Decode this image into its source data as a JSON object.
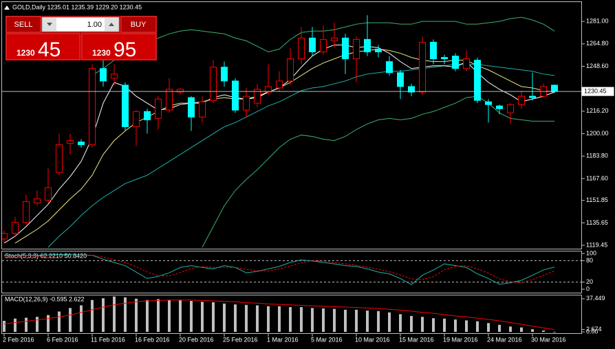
{
  "chart_data": [
    {
      "type": "candlestick",
      "title": "GOLD,Daily 1235.01 1235.39 1229.20 1230.45",
      "categories": [
        "2 Feb 2016",
        null,
        null,
        null,
        "6 Feb 2016",
        null,
        null,
        null,
        "11 Feb 2016",
        null,
        null,
        null,
        "16 Feb 2016",
        null,
        null,
        null,
        "20 Feb 2016",
        null,
        null,
        null,
        "25 Feb 2016",
        null,
        null,
        null,
        "1 Mar 2016",
        null,
        null,
        null,
        "5 Mar 2016",
        null,
        null,
        null,
        "10 Mar 2016",
        null,
        null,
        null,
        "15 Mar 2016",
        null,
        null,
        null,
        "19 Mar 2016",
        null,
        null,
        null,
        "24 Mar 2016",
        null,
        null,
        null,
        "30 Mar 2016",
        null,
        null
      ],
      "open": [
        1124,
        1128,
        1136,
        1150,
        1152,
        1172,
        1193,
        1194,
        1192,
        1247,
        1240,
        1235,
        1205,
        1216,
        1211,
        1217,
        1230,
        1226,
        1212,
        1224,
        1248,
        1238,
        1217,
        1222,
        1230,
        1233,
        1238,
        1254,
        1269,
        1259,
        1267,
        1269,
        1254,
        1268,
        1261,
        1252,
        1244,
        1234,
        1230,
        1266,
        1255,
        1256,
        1247,
        1253,
        1223,
        1220,
        1215,
        1221,
        1227,
        1227,
        1235.01
      ],
      "high": [
        1130,
        1140,
        1156,
        1159,
        1175,
        1200,
        1200,
        1196,
        1250,
        1253,
        1250,
        1237,
        1217,
        1218,
        1227,
        1240,
        1233,
        1227,
        1227,
        1253,
        1252,
        1240,
        1233,
        1236,
        1250,
        1245,
        1262,
        1277,
        1277,
        1278,
        1280,
        1272,
        1270,
        1285.5,
        1264,
        1256,
        1246,
        1236,
        1270,
        1268,
        1257,
        1258,
        1260,
        1255,
        1225,
        1221,
        1222,
        1231,
        1244,
        1236,
        1235.39
      ],
      "low": [
        1121,
        1125,
        1134,
        1148,
        1150,
        1170,
        1185,
        1190,
        1190,
        1234,
        1235,
        1202,
        1191,
        1200,
        1203,
        1215,
        1228,
        1202,
        1208,
        1222,
        1234,
        1215,
        1212,
        1219,
        1228,
        1230,
        1235,
        1250,
        1256,
        1257,
        1262,
        1243,
        1237,
        1256,
        1255,
        1242,
        1225,
        1227,
        1228,
        1250,
        1250,
        1245,
        1245,
        1222,
        1208,
        1214,
        1207,
        1218,
        1224,
        1226,
        1229.2
      ],
      "close": [
        1128,
        1136,
        1151,
        1153,
        1161,
        1192,
        1195,
        1192,
        1247,
        1238,
        1243,
        1205,
        1216,
        1210,
        1225,
        1232,
        1232,
        1212,
        1223,
        1248,
        1238,
        1217,
        1227,
        1232,
        1234,
        1238,
        1254,
        1269,
        1259,
        1268,
        1269,
        1254,
        1268,
        1259,
        1259,
        1244,
        1234,
        1230,
        1266,
        1254,
        1254,
        1247,
        1254,
        1224,
        1221,
        1218,
        1221,
        1227,
        1226,
        1234,
        1230.45
      ],
      "up_color": "#ff0000",
      "down_color": "#00ffff",
      "overlays": [
        {
          "color": "#3cb371",
          "values": [
            null,
            null,
            null,
            null,
            null,
            null,
            null,
            null,
            1242,
            1247,
            1253,
            1257,
            1261,
            1266,
            1269,
            1272,
            1274,
            1275,
            1274,
            1273,
            1272,
            1269,
            1267,
            1263,
            1259,
            1261,
            1268,
            1273,
            1274,
            1274,
            1275,
            1277,
            1279,
            1280,
            1280,
            1280,
            1279,
            1279,
            1281,
            1281,
            1281,
            1281,
            1279,
            1279,
            1280,
            1281,
            1283,
            1284,
            1282,
            1279,
            1274
          ]
        },
        {
          "color": "#3cb371",
          "values": [
            null,
            null,
            null,
            null,
            null,
            null,
            null,
            null,
            null,
            null,
            null,
            null,
            null,
            null,
            null,
            null,
            null,
            null,
            1118,
            1133,
            1148,
            1159,
            1167,
            1174,
            1182,
            1190,
            1196,
            1199,
            1198,
            1196,
            1195,
            1198,
            1203,
            1207,
            1210,
            1211,
            1210,
            1211,
            1214,
            1216,
            1219,
            1222,
            1226,
            1227,
            1222,
            1215,
            1211,
            1210,
            1209,
            1209,
            1209
          ]
        },
        {
          "color": "#20b2aa",
          "values": [
            null,
            null,
            null,
            null,
            1118,
            1126,
            1133,
            1141,
            1148,
            1154,
            1159,
            1164,
            1167,
            1170,
            1175,
            1180,
            1185,
            1190,
            1195,
            1200,
            1205,
            1208,
            1212,
            1216,
            1220,
            1223,
            1227,
            1231,
            1233,
            1234,
            1236,
            1238,
            1241,
            1243,
            1244,
            1245,
            1245,
            1246,
            1247,
            1248,
            1249,
            1250,
            1250,
            1250,
            1249,
            1248,
            1247,
            1246,
            1245,
            1243,
            1242
          ]
        },
        {
          "color": "#f0e68c",
          "values": [
            null,
            1121,
            1126,
            1131,
            1137,
            1145,
            1153,
            1160,
            1170,
            1185,
            1195,
            1202,
            1208,
            1212,
            1216,
            1220,
            1222,
            1222,
            1223,
            1225,
            1226,
            1225,
            1225,
            1227,
            1230,
            1233,
            1237,
            1242,
            1247,
            1251,
            1254,
            1257,
            1259,
            1260,
            1261,
            1260,
            1258,
            1255,
            1253,
            1252,
            1252,
            1253,
            1253,
            1249,
            1246,
            1242,
            1238,
            1234,
            1233,
            1231,
            1230
          ]
        },
        {
          "color": "#ffffff",
          "values": [
            1121,
            1126,
            1133,
            1141,
            1149,
            1160,
            1169,
            1180,
            1197,
            1222,
            1237,
            1234,
            1227,
            1222,
            1217,
            1218,
            1221,
            1222,
            1222,
            1226,
            1228,
            1226,
            1225,
            1226,
            1230,
            1233,
            1239,
            1248,
            1256,
            1261,
            1264,
            1264,
            1262,
            1263,
            1262,
            1258,
            1252,
            1247,
            1248,
            1249,
            1249,
            1248,
            1252,
            1244,
            1237,
            1232,
            1228,
            1223,
            1225,
            1227,
            1230
          ]
        }
      ],
      "ylim": [
        1117,
        1289.5
      ],
      "yticks": [
        {
          "value": 1281,
          "label": "1281.00"
        },
        {
          "value": 1264.8,
          "label": "1264.80"
        },
        {
          "value": 1248.6,
          "label": "1248.60"
        },
        {
          "value": 1216.2,
          "label": "1216.20"
        },
        {
          "value": 1200,
          "label": "1200.00"
        },
        {
          "value": 1183.8,
          "label": "1183.80"
        },
        {
          "value": 1167.6,
          "label": "1167.60"
        },
        {
          "value": 1151.85,
          "label": "1151.85"
        },
        {
          "value": 1135.65,
          "label": "1135.65"
        },
        {
          "value": 1119.45,
          "label": "1119.45"
        }
      ]
    },
    {
      "type": "stochastic",
      "title": "Stoch(5,3,3) 62.2210 50.8420",
      "series": [
        {
          "color": "#20b2aa",
          "values": [
            95,
            95,
            95,
            95,
            96,
            97,
            97,
            96,
            95,
            84,
            75,
            66,
            48,
            30,
            36,
            46,
            61,
            66,
            61,
            57,
            66,
            61,
            46,
            50,
            57,
            64,
            75,
            82,
            79,
            75,
            71,
            66,
            64,
            57,
            48,
            43,
            30,
            13,
            39,
            54,
            71,
            66,
            61,
            43,
            30,
            14,
            18,
            25,
            39,
            54,
            62.221
          ]
        },
        {
          "color": "#ff0000",
          "dashed": true,
          "values": [
            93,
            93,
            93,
            93,
            93,
            94,
            95,
            95,
            95,
            90,
            83,
            75,
            63,
            48,
            38,
            37,
            47,
            58,
            63,
            61,
            61,
            61,
            56,
            52,
            51,
            57,
            65,
            74,
            79,
            79,
            75,
            71,
            67,
            62,
            56,
            49,
            40,
            29,
            27,
            35,
            55,
            64,
            66,
            57,
            45,
            29,
            21,
            19,
            27,
            39,
            50.842
          ]
        }
      ],
      "ylim": [
        0,
        100
      ],
      "yticks": [
        100,
        80,
        20,
        0
      ]
    },
    {
      "type": "macd",
      "title": "MACD(12,26,9) -0.595 2.622",
      "values": [
        12.5,
        15,
        16,
        17,
        19,
        23,
        27,
        30,
        36,
        38,
        40,
        39,
        37.5,
        36,
        37,
        36,
        36,
        35,
        34,
        33.5,
        32,
        31,
        30.5,
        30,
        29,
        29,
        28,
        28,
        27,
        26.5,
        26,
        25,
        25,
        24,
        23.5,
        22,
        20,
        18,
        17,
        15.5,
        15,
        14,
        13,
        12,
        10,
        8,
        6,
        5,
        3,
        1.5,
        -0.595
      ],
      "color": "#c0c0c0",
      "series": [
        {
          "color": "#ff0000",
          "values": [
            9,
            10.5,
            12,
            13.5,
            15,
            17,
            19,
            22,
            25,
            28,
            30.5,
            32.5,
            34,
            35,
            35.5,
            36,
            36,
            36,
            35.5,
            35,
            34.5,
            34,
            33,
            32.5,
            31.5,
            31,
            30.5,
            30,
            29.5,
            29,
            28.5,
            28,
            27.5,
            27,
            26.5,
            25.5,
            24.5,
            23.5,
            22,
            21,
            19.5,
            18,
            17,
            15.5,
            14,
            12.5,
            10.5,
            8.5,
            6.5,
            4.5,
            2.622
          ]
        }
      ],
      "ylim": [
        -1.5,
        42
      ],
      "yticks": [
        37.449,
        2.674,
        {
          "value": 0,
          "label": "0.00"
        }
      ]
    }
  ],
  "trade_panel": {
    "sell": "SELL",
    "buy": "BUY",
    "lot": "1.00",
    "bid_prefix": "1230",
    "bid_pips": "45",
    "ask_prefix": "1230",
    "ask_pips": "95"
  }
}
